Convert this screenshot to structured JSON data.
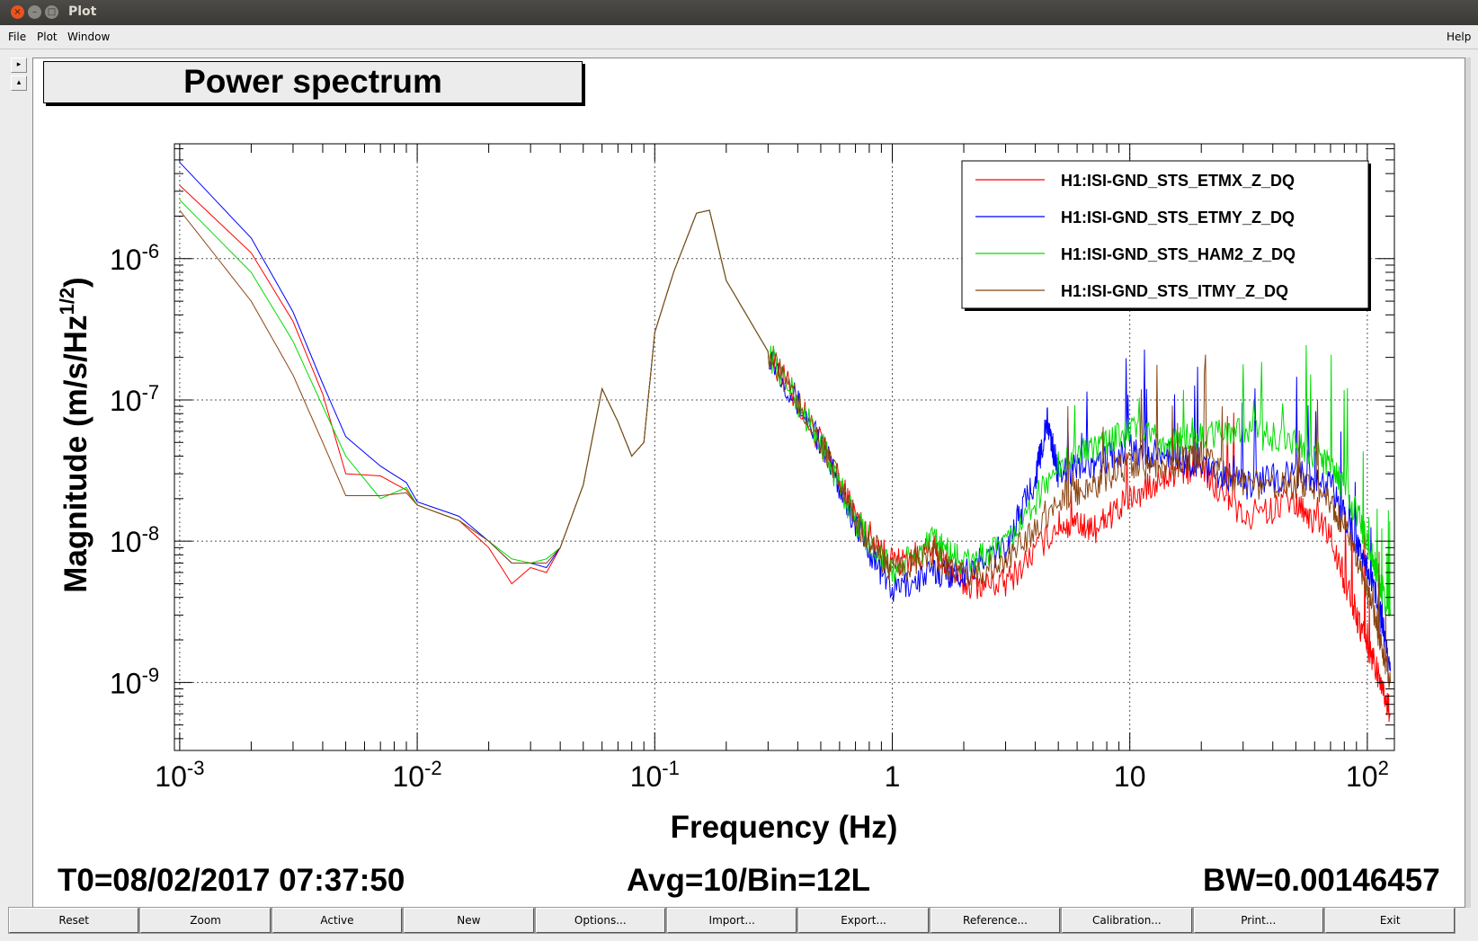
{
  "window": {
    "title": "Plot"
  },
  "menu": {
    "file": "File",
    "plot": "Plot",
    "window": "Window",
    "help": "Help"
  },
  "side_buttons": {
    "right_arrow": "▸",
    "up_arrow": "▴"
  },
  "chart_data": {
    "type": "line",
    "title": "Power spectrum",
    "xlabel": "Frequency (Hz)",
    "ylabel": "Magnitude (m/s/Hz",
    "ylabel_superscript": "1/2",
    "ylabel_close": ")",
    "x_scale": "log",
    "y_scale": "log",
    "xlim": [
      0.00095,
      130
    ],
    "ylim": [
      3.3e-10,
      6.5e-06
    ],
    "grid": true,
    "legend_position": "top-right",
    "x_ticks": [
      {
        "base": "10",
        "exp": "-3",
        "value": 0.001
      },
      {
        "base": "10",
        "exp": "-2",
        "value": 0.01
      },
      {
        "base": "10",
        "exp": "-1",
        "value": 0.1
      },
      {
        "base": "1",
        "exp": "",
        "value": 1
      },
      {
        "base": "10",
        "exp": "",
        "value": 10
      },
      {
        "base": "10",
        "exp": "2",
        "value": 100
      }
    ],
    "y_ticks": [
      {
        "base": "10",
        "exp": "-6",
        "value": 1e-06
      },
      {
        "base": "10",
        "exp": "-7",
        "value": 1e-07
      },
      {
        "base": "10",
        "exp": "-8",
        "value": 1e-08
      },
      {
        "base": "10",
        "exp": "-9",
        "value": 1e-09
      }
    ],
    "series": [
      {
        "name": "H1:ISI-GND_STS_ETMX_Z_DQ",
        "color": "#ff0000",
        "points": [
          [
            0.001,
            3.3e-06
          ],
          [
            0.002,
            1.1e-06
          ],
          [
            0.003,
            3.6e-07
          ],
          [
            0.004,
            1.1e-07
          ],
          [
            0.005,
            3e-08
          ],
          [
            0.007,
            2.9e-08
          ],
          [
            0.009,
            2.3e-08
          ],
          [
            0.01,
            1.8e-08
          ],
          [
            0.015,
            1.4e-08
          ],
          [
            0.02,
            9e-09
          ],
          [
            0.025,
            5e-09
          ],
          [
            0.03,
            6.5e-09
          ],
          [
            0.035,
            6e-09
          ],
          [
            0.04,
            9e-09
          ],
          [
            0.05,
            2.5e-08
          ],
          [
            0.06,
            1.2e-07
          ],
          [
            0.07,
            7e-08
          ],
          [
            0.08,
            4e-08
          ],
          [
            0.09,
            5e-08
          ],
          [
            0.1,
            3e-07
          ],
          [
            0.12,
            8e-07
          ],
          [
            0.15,
            2.1e-06
          ],
          [
            0.17,
            2.2e-06
          ],
          [
            0.2,
            7e-07
          ],
          [
            0.3,
            2.2e-07
          ],
          [
            0.5,
            5e-08
          ],
          [
            0.7,
            1.5e-08
          ],
          [
            1,
            7e-09
          ],
          [
            1.5,
            8.5e-09
          ],
          [
            2,
            5e-09
          ],
          [
            3,
            5e-09
          ],
          [
            5,
            1.3e-08
          ],
          [
            7,
            1.2e-08
          ],
          [
            10,
            2e-08
          ],
          [
            15,
            3e-08
          ],
          [
            20,
            3.4e-08
          ],
          [
            30,
            1.5e-08
          ],
          [
            50,
            1.8e-08
          ],
          [
            70,
            1.1e-08
          ],
          [
            90,
            3e-09
          ],
          [
            110,
            1.2e-09
          ],
          [
            125,
            6e-10
          ]
        ]
      },
      {
        "name": "H1:ISI-GND_STS_ETMY_Z_DQ",
        "color": "#0000ff",
        "points": [
          [
            0.001,
            4.8e-06
          ],
          [
            0.002,
            1.4e-06
          ],
          [
            0.003,
            4.2e-07
          ],
          [
            0.004,
            1.3e-07
          ],
          [
            0.005,
            5.5e-08
          ],
          [
            0.007,
            3.4e-08
          ],
          [
            0.009,
            2.6e-08
          ],
          [
            0.01,
            1.9e-08
          ],
          [
            0.015,
            1.5e-08
          ],
          [
            0.02,
            1e-08
          ],
          [
            0.025,
            7e-09
          ],
          [
            0.03,
            7e-09
          ],
          [
            0.035,
            6.5e-09
          ],
          [
            0.04,
            9e-09
          ],
          [
            0.05,
            2.5e-08
          ],
          [
            0.06,
            1.2e-07
          ],
          [
            0.07,
            7e-08
          ],
          [
            0.08,
            4e-08
          ],
          [
            0.09,
            5e-08
          ],
          [
            0.1,
            3e-07
          ],
          [
            0.12,
            8e-07
          ],
          [
            0.15,
            2.1e-06
          ],
          [
            0.17,
            2.2e-06
          ],
          [
            0.2,
            7e-07
          ],
          [
            0.3,
            2.2e-07
          ],
          [
            0.5,
            5e-08
          ],
          [
            0.7,
            1.3e-08
          ],
          [
            1,
            4.5e-09
          ],
          [
            1.5,
            6e-09
          ],
          [
            2,
            6e-09
          ],
          [
            3,
            9e-09
          ],
          [
            4,
            2.8e-08
          ],
          [
            4.5,
            7e-08
          ],
          [
            5,
            3e-08
          ],
          [
            7,
            3.5e-08
          ],
          [
            10,
            4.5e-08
          ],
          [
            15,
            4e-08
          ],
          [
            20,
            3.5e-08
          ],
          [
            30,
            2.5e-08
          ],
          [
            50,
            3e-08
          ],
          [
            70,
            2.5e-08
          ],
          [
            90,
            1e-08
          ],
          [
            110,
            4e-09
          ],
          [
            125,
            1.2e-09
          ]
        ]
      },
      {
        "name": "H1:ISI-GND_STS_HAM2_Z_DQ",
        "color": "#00dd00",
        "points": [
          [
            0.001,
            2.6e-06
          ],
          [
            0.002,
            8e-07
          ],
          [
            0.003,
            2.6e-07
          ],
          [
            0.004,
            9e-08
          ],
          [
            0.005,
            4e-08
          ],
          [
            0.007,
            2e-08
          ],
          [
            0.009,
            2.4e-08
          ],
          [
            0.01,
            1.8e-08
          ],
          [
            0.015,
            1.4e-08
          ],
          [
            0.02,
            1e-08
          ],
          [
            0.025,
            7.5e-09
          ],
          [
            0.03,
            7e-09
          ],
          [
            0.035,
            7.5e-09
          ],
          [
            0.04,
            9e-09
          ],
          [
            0.05,
            2.5e-08
          ],
          [
            0.06,
            1.2e-07
          ],
          [
            0.07,
            7e-08
          ],
          [
            0.08,
            4e-08
          ],
          [
            0.09,
            5e-08
          ],
          [
            0.1,
            3e-07
          ],
          [
            0.12,
            8e-07
          ],
          [
            0.15,
            2.1e-06
          ],
          [
            0.17,
            2.2e-06
          ],
          [
            0.2,
            7e-07
          ],
          [
            0.3,
            2.2e-07
          ],
          [
            0.5,
            5e-08
          ],
          [
            0.7,
            1.4e-08
          ],
          [
            1,
            6e-09
          ],
          [
            1.5,
            1e-08
          ],
          [
            2,
            7e-09
          ],
          [
            3,
            9e-09
          ],
          [
            5,
            3.5e-08
          ],
          [
            7,
            4.5e-08
          ],
          [
            10,
            6e-08
          ],
          [
            15,
            5e-08
          ],
          [
            20,
            5.5e-08
          ],
          [
            30,
            6e-08
          ],
          [
            50,
            5e-08
          ],
          [
            70,
            3.5e-08
          ],
          [
            90,
            1.6e-08
          ],
          [
            110,
            6e-09
          ],
          [
            125,
            3e-09
          ]
        ]
      },
      {
        "name": "H1:ISI-GND_STS_ITMY_Z_DQ",
        "color": "#8b4513",
        "points": [
          [
            0.001,
            2.2e-06
          ],
          [
            0.002,
            5e-07
          ],
          [
            0.003,
            1.5e-07
          ],
          [
            0.004,
            5e-08
          ],
          [
            0.005,
            2.1e-08
          ],
          [
            0.007,
            2.1e-08
          ],
          [
            0.009,
            2.2e-08
          ],
          [
            0.01,
            1.8e-08
          ],
          [
            0.015,
            1.4e-08
          ],
          [
            0.02,
            1e-08
          ],
          [
            0.025,
            7e-09
          ],
          [
            0.03,
            7e-09
          ],
          [
            0.035,
            7e-09
          ],
          [
            0.04,
            9e-09
          ],
          [
            0.05,
            2.5e-08
          ],
          [
            0.06,
            1.2e-07
          ],
          [
            0.07,
            7e-08
          ],
          [
            0.08,
            4e-08
          ],
          [
            0.09,
            5e-08
          ],
          [
            0.1,
            3e-07
          ],
          [
            0.12,
            8e-07
          ],
          [
            0.15,
            2.1e-06
          ],
          [
            0.17,
            2.2e-06
          ],
          [
            0.2,
            7e-07
          ],
          [
            0.3,
            2.2e-07
          ],
          [
            0.5,
            5e-08
          ],
          [
            0.7,
            1.4e-08
          ],
          [
            1,
            6e-09
          ],
          [
            1.5,
            8e-09
          ],
          [
            2,
            5.5e-09
          ],
          [
            3,
            7e-09
          ],
          [
            5,
            2e-08
          ],
          [
            7,
            2.5e-08
          ],
          [
            10,
            3.5e-08
          ],
          [
            15,
            3.5e-08
          ],
          [
            20,
            4e-08
          ],
          [
            30,
            2.5e-08
          ],
          [
            50,
            2.5e-08
          ],
          [
            70,
            2e-08
          ],
          [
            90,
            8e-09
          ],
          [
            110,
            2.5e-09
          ],
          [
            125,
            1e-09
          ]
        ]
      }
    ]
  },
  "footer": {
    "t0": "T0=08/02/2017 07:37:50",
    "avg": "Avg=10/Bin=12L",
    "bw": "BW=0.00146457"
  },
  "buttons": [
    "Reset",
    "Zoom",
    "Active",
    "New",
    "Options...",
    "Import...",
    "Export...",
    "Reference...",
    "Calibration...",
    "Print...",
    "Exit"
  ]
}
